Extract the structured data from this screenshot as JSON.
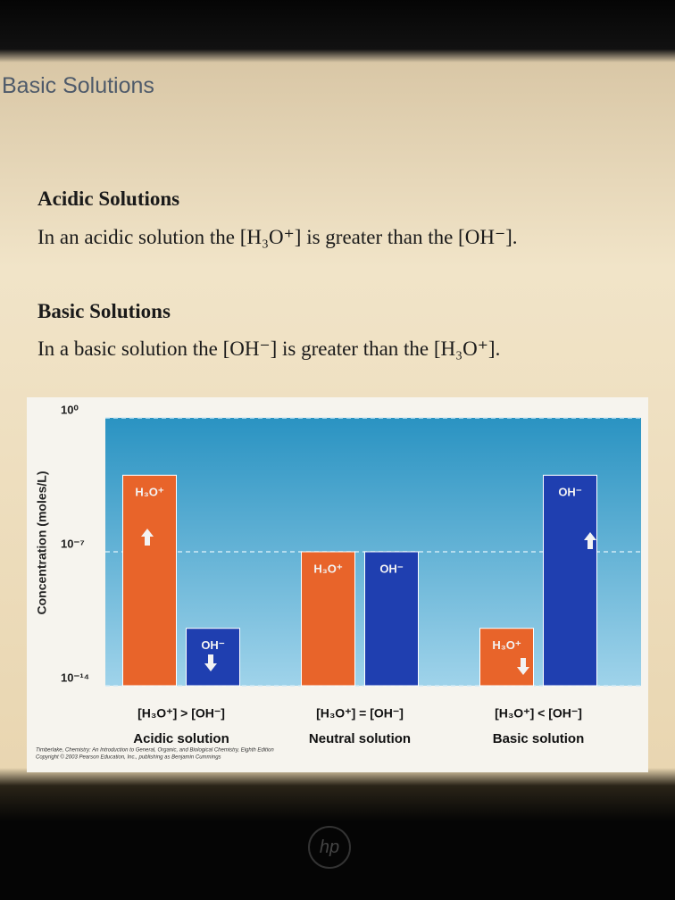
{
  "slide": {
    "title": "Basic Solutions",
    "sections": [
      {
        "heading": "Acidic Solutions",
        "text": "In an acidic solution the [H₃O⁺] is greater than the [OH⁻]."
      },
      {
        "heading": "Basic Solutions",
        "text": "In a basic solution the [OH⁻] is greater than the [H₃O⁺]."
      }
    ],
    "credit": [
      "Timberlake, Chemistry: An Introduction to General, Organic, and Biological Chemistry, Eighth Edition",
      "Copyright © 2003 Pearson Education, Inc., publishing as Benjamin Cummings"
    ]
  },
  "device": {
    "logo": "hp"
  },
  "chart_data": {
    "type": "bar",
    "y_label": "Concentration (moles/L)",
    "log_scale": true,
    "grid": true,
    "categories": [
      "Acidic solution",
      "Neutral solution",
      "Basic solution"
    ],
    "relations": [
      "[H₃O⁺] > [OH⁻]",
      "[H₃O⁺] = [OH⁻]",
      "[H₃O⁺] < [OH⁻]"
    ],
    "series": [
      {
        "name": "H₃O⁺",
        "color": "#e8642a",
        "values": [
          0.001,
          1e-07,
          1e-11
        ]
      },
      {
        "name": "OH⁻",
        "color": "#1f3fb0",
        "values": [
          1e-11,
          1e-07,
          0.001
        ]
      }
    ],
    "ylim": [
      1e-14,
      1
    ],
    "yticks": [
      {
        "value": 1,
        "label": "10⁰"
      },
      {
        "value": 1e-07,
        "label": "10⁻⁷"
      },
      {
        "value": 1e-14,
        "label": "10⁻¹⁴"
      }
    ]
  }
}
